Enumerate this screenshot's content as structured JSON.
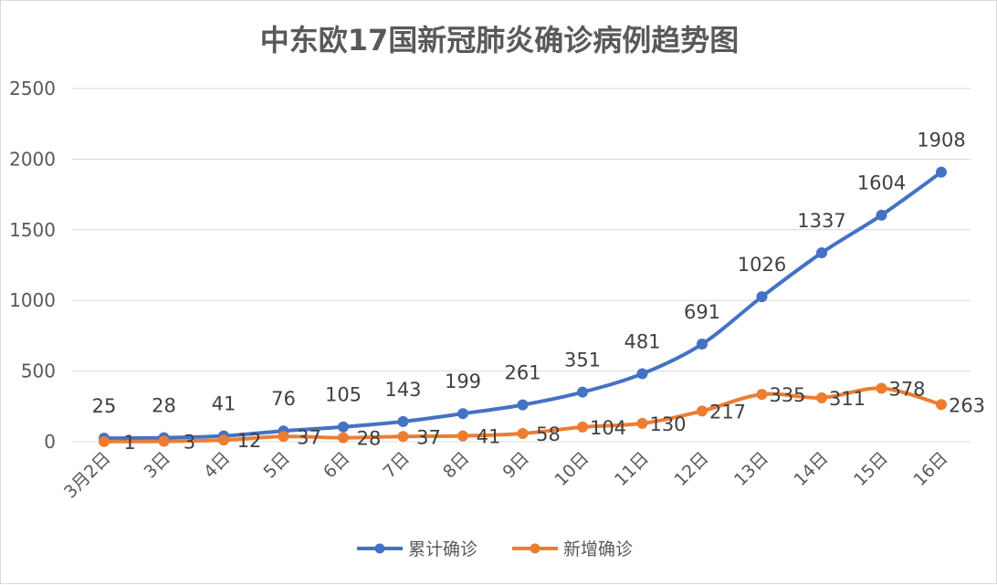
{
  "chart_data": {
    "type": "line",
    "title": "中东欧17国新冠肺炎确诊病例趋势图",
    "categories": [
      "3月2日",
      "3日",
      "4日",
      "5日",
      "6日",
      "7日",
      "8日",
      "9日",
      "10日",
      "11日",
      "12日",
      "13日",
      "14日",
      "15日",
      "16日"
    ],
    "series": [
      {
        "name": "累计确诊",
        "color": "#4472C4",
        "values": [
          25,
          28,
          41,
          76,
          105,
          143,
          199,
          261,
          351,
          481,
          691,
          1026,
          1337,
          1604,
          1908
        ]
      },
      {
        "name": "新增确诊",
        "color": "#ED7D31",
        "values": [
          1,
          3,
          12,
          37,
          28,
          37,
          41,
          58,
          104,
          130,
          217,
          335,
          311,
          378,
          263
        ]
      }
    ],
    "ylim": [
      0,
      2500
    ],
    "yticks": [
      0,
      500,
      1000,
      1500,
      2000,
      2500
    ],
    "grid": true,
    "legend_position": "bottom"
  }
}
